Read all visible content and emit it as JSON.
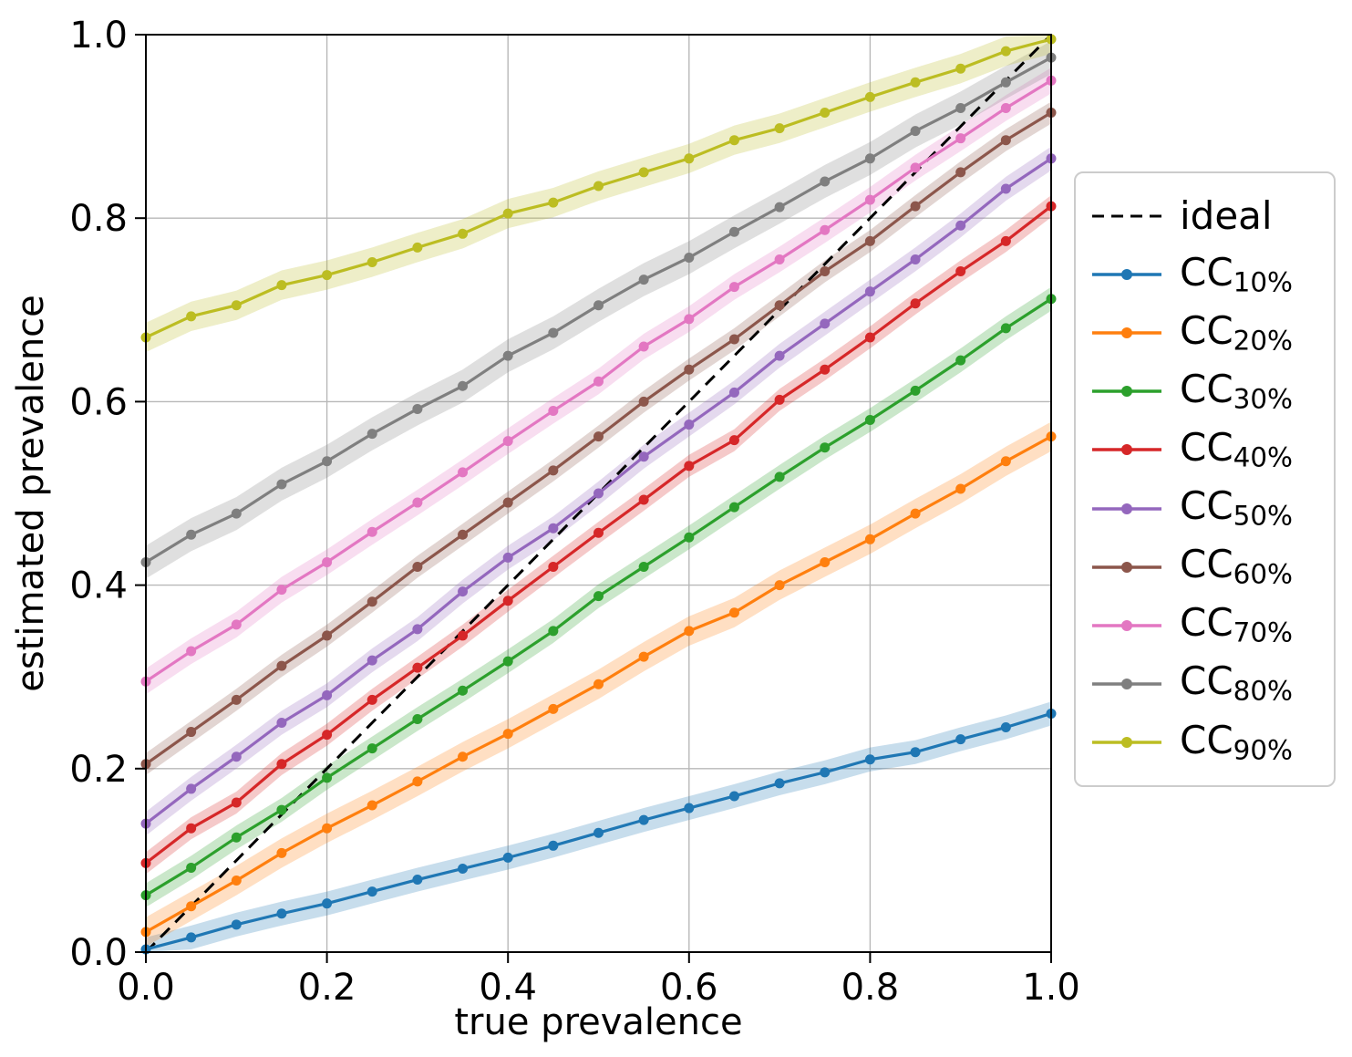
{
  "chart_data": {
    "type": "line",
    "title": "",
    "xlabel": "true prevalence",
    "ylabel": "estimated prevalence",
    "xlim": [
      0.0,
      1.0
    ],
    "ylim": [
      0.0,
      1.0
    ],
    "xticks": [
      0.0,
      0.2,
      0.4,
      0.6,
      0.8,
      1.0
    ],
    "xtick_labels": [
      "0.0",
      "0.2",
      "0.4",
      "0.6",
      "0.8",
      "1.0"
    ],
    "yticks": [
      0.0,
      0.2,
      0.4,
      0.6,
      0.8,
      1.0
    ],
    "ytick_labels": [
      "0.0",
      "0.2",
      "0.4",
      "0.6",
      "0.8",
      "1.0"
    ],
    "grid": true,
    "grid_color": "#b8b8b8",
    "legend_position": "outside-right",
    "x": [
      0.0,
      0.05,
      0.1,
      0.15,
      0.2,
      0.25,
      0.3,
      0.35,
      0.4,
      0.45,
      0.5,
      0.55,
      0.6,
      0.65,
      0.7,
      0.75,
      0.8,
      0.85,
      0.9,
      0.95,
      1.0
    ],
    "ideal": {
      "label": "ideal",
      "x": [
        0.0,
        1.0
      ],
      "y": [
        0.0,
        1.0
      ],
      "color": "#000000",
      "linestyle": "dashed"
    },
    "series": [
      {
        "name": "CC",
        "sub": "10%",
        "color": "#1f77b4",
        "band": 0.013,
        "values": [
          0.003,
          0.016,
          0.03,
          0.042,
          0.053,
          0.066,
          0.079,
          0.091,
          0.103,
          0.116,
          0.13,
          0.144,
          0.157,
          0.17,
          0.184,
          0.196,
          0.21,
          0.218,
          0.232,
          0.245,
          0.26
        ]
      },
      {
        "name": "CC",
        "sub": "20%",
        "color": "#ff7f0e",
        "band": 0.016,
        "values": [
          0.022,
          0.05,
          0.078,
          0.108,
          0.135,
          0.16,
          0.186,
          0.213,
          0.238,
          0.265,
          0.292,
          0.322,
          0.35,
          0.37,
          0.4,
          0.425,
          0.45,
          0.478,
          0.505,
          0.535,
          0.562
        ]
      },
      {
        "name": "CC",
        "sub": "30%",
        "color": "#2ca02c",
        "band": 0.013,
        "values": [
          0.062,
          0.092,
          0.125,
          0.155,
          0.19,
          0.222,
          0.254,
          0.285,
          0.317,
          0.35,
          0.388,
          0.42,
          0.452,
          0.485,
          0.518,
          0.55,
          0.58,
          0.612,
          0.645,
          0.68,
          0.712
        ]
      },
      {
        "name": "CC",
        "sub": "40%",
        "color": "#d62728",
        "band": 0.012,
        "values": [
          0.097,
          0.135,
          0.163,
          0.205,
          0.237,
          0.275,
          0.31,
          0.345,
          0.383,
          0.42,
          0.457,
          0.493,
          0.53,
          0.558,
          0.602,
          0.635,
          0.67,
          0.707,
          0.742,
          0.775,
          0.813
        ]
      },
      {
        "name": "CC",
        "sub": "50%",
        "color": "#9467bd",
        "band": 0.013,
        "values": [
          0.14,
          0.178,
          0.213,
          0.25,
          0.28,
          0.318,
          0.352,
          0.393,
          0.43,
          0.462,
          0.5,
          0.54,
          0.575,
          0.61,
          0.65,
          0.685,
          0.72,
          0.755,
          0.792,
          0.832,
          0.865
        ]
      },
      {
        "name": "CC",
        "sub": "60%",
        "color": "#8c564b",
        "band": 0.012,
        "values": [
          0.205,
          0.24,
          0.275,
          0.312,
          0.345,
          0.382,
          0.42,
          0.455,
          0.49,
          0.525,
          0.562,
          0.6,
          0.635,
          0.668,
          0.705,
          0.742,
          0.775,
          0.813,
          0.85,
          0.885,
          0.915
        ]
      },
      {
        "name": "CC",
        "sub": "70%",
        "color": "#e377c2",
        "band": 0.014,
        "values": [
          0.295,
          0.328,
          0.357,
          0.395,
          0.425,
          0.458,
          0.49,
          0.523,
          0.557,
          0.59,
          0.622,
          0.66,
          0.69,
          0.725,
          0.755,
          0.787,
          0.82,
          0.855,
          0.887,
          0.92,
          0.95
        ]
      },
      {
        "name": "CC",
        "sub": "80%",
        "color": "#7f7f7f",
        "band": 0.018,
        "values": [
          0.425,
          0.455,
          0.478,
          0.51,
          0.535,
          0.565,
          0.592,
          0.617,
          0.65,
          0.675,
          0.705,
          0.733,
          0.757,
          0.785,
          0.812,
          0.84,
          0.865,
          0.895,
          0.92,
          0.948,
          0.975
        ]
      },
      {
        "name": "CC",
        "sub": "90%",
        "color": "#bcbd22",
        "band": 0.016,
        "values": [
          0.67,
          0.693,
          0.705,
          0.727,
          0.738,
          0.752,
          0.768,
          0.783,
          0.805,
          0.817,
          0.835,
          0.85,
          0.865,
          0.885,
          0.898,
          0.915,
          0.932,
          0.948,
          0.963,
          0.982,
          0.995
        ]
      }
    ]
  }
}
